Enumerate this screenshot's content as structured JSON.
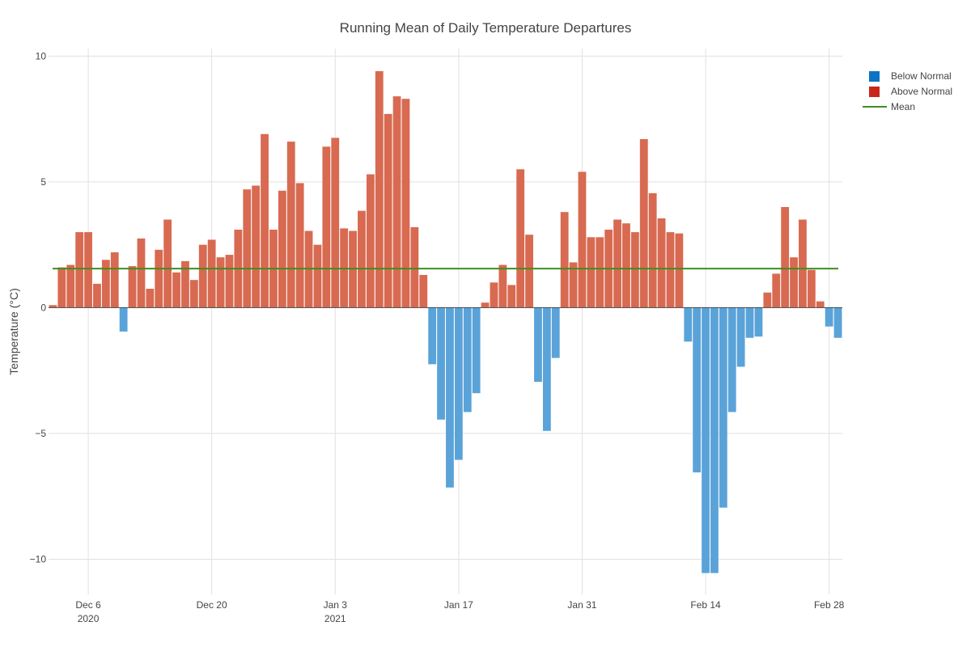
{
  "chart_data": {
    "type": "bar",
    "title": "Running Mean of Daily Temperature Departures",
    "xlabel": "",
    "ylabel": "Temperature (°C)",
    "start_date": "2020-12-02",
    "end_date": "2021-03-01",
    "ylim": [
      -11.4,
      10.3
    ],
    "yticks": [
      10,
      5,
      0,
      -5,
      -10
    ],
    "ytick_labels": [
      "10",
      "5",
      "0",
      "−5",
      "−10"
    ],
    "xticks": [
      {
        "date": "2020-12-06",
        "label": "Dec 6",
        "sublabel": "2020"
      },
      {
        "date": "2020-12-20",
        "label": "Dec 20",
        "sublabel": ""
      },
      {
        "date": "2021-01-03",
        "label": "Jan 3",
        "sublabel": "2021"
      },
      {
        "date": "2021-01-17",
        "label": "Jan 17",
        "sublabel": ""
      },
      {
        "date": "2021-01-31",
        "label": "Jan 31",
        "sublabel": ""
      },
      {
        "date": "2021-02-14",
        "label": "Feb 14",
        "sublabel": ""
      },
      {
        "date": "2021-02-28",
        "label": "Feb 28",
        "sublabel": ""
      }
    ],
    "grid": true,
    "legend_position": "top-right",
    "series": [
      {
        "name": "Below Normal",
        "color": "#0e73c4",
        "bar_color": "#5aa3d9"
      },
      {
        "name": "Above Normal",
        "color": "#c9261a",
        "bar_color": "#d86a51"
      },
      {
        "name": "Mean",
        "color": "#3f8f1f",
        "type": "line"
      }
    ],
    "mean": 1.55,
    "values": [
      0.1,
      1.6,
      1.7,
      3.0,
      3.0,
      0.95,
      1.9,
      2.2,
      -0.95,
      1.65,
      2.75,
      0.75,
      2.3,
      3.5,
      1.4,
      1.85,
      1.1,
      2.5,
      2.7,
      2.0,
      2.1,
      3.1,
      4.7,
      4.85,
      6.9,
      3.1,
      4.65,
      6.6,
      4.95,
      3.05,
      2.5,
      6.4,
      6.75,
      3.15,
      3.05,
      3.85,
      5.3,
      9.4,
      7.7,
      8.4,
      8.3,
      3.2,
      1.3,
      -2.25,
      -4.45,
      -7.15,
      -6.05,
      -4.15,
      -3.4,
      0.2,
      1.0,
      1.7,
      0.9,
      5.5,
      2.9,
      -2.95,
      -4.9,
      -2.0,
      3.8,
      1.8,
      5.4,
      2.8,
      2.8,
      3.1,
      3.5,
      3.35,
      3.0,
      6.7,
      4.55,
      3.55,
      3.0,
      2.95,
      -1.35,
      -6.55,
      -10.55,
      -10.55,
      -7.95,
      -4.15,
      -2.35,
      -1.2,
      -1.15,
      0.6,
      1.35,
      4.0,
      2.0,
      3.5,
      1.5,
      0.25,
      -0.75,
      -1.2
    ]
  }
}
